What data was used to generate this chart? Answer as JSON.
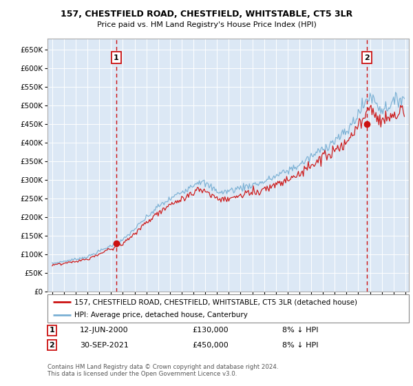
{
  "title1": "157, CHESTFIELD ROAD, CHESTFIELD, WHITSTABLE, CT5 3LR",
  "title2": "Price paid vs. HM Land Registry's House Price Index (HPI)",
  "background_color": "#ffffff",
  "grid_color": "#cccccc",
  "plot_bg": "#dce8f5",
  "hpi_color": "#7ab0d4",
  "price_color": "#cc1111",
  "marker1_date": 2000.45,
  "marker1_price": 130000,
  "marker2_date": 2021.75,
  "marker2_price": 450000,
  "sale1_label": "12-JUN-2000",
  "sale1_price": "£130,000",
  "sale1_hpi": "8% ↓ HPI",
  "sale2_label": "30-SEP-2021",
  "sale2_price": "£450,000",
  "sale2_hpi": "8% ↓ HPI",
  "legend1": "157, CHESTFIELD ROAD, CHESTFIELD, WHITSTABLE, CT5 3LR (detached house)",
  "legend2": "HPI: Average price, detached house, Canterbury",
  "footer": "Contains HM Land Registry data © Crown copyright and database right 2024.\nThis data is licensed under the Open Government Licence v3.0.",
  "xmin": 1994.6,
  "xmax": 2025.3,
  "ymin": 0,
  "ymax": 680000
}
